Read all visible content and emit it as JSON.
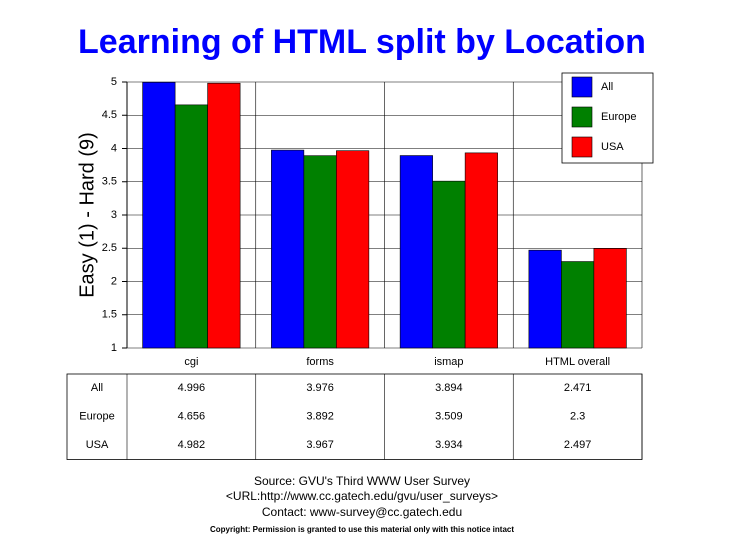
{
  "chart_data": {
    "type": "bar",
    "title": "Learning of HTML split by Location",
    "y_label": "Easy (1) - Hard (9)",
    "categories": [
      "cgi",
      "forms",
      "ismap",
      "HTML overall"
    ],
    "series": [
      {
        "name": "All",
        "color": "#0000ff",
        "values": [
          4.996,
          3.976,
          3.894,
          2.471
        ]
      },
      {
        "name": "Europe",
        "color": "#008000",
        "values": [
          4.656,
          3.892,
          3.509,
          2.3
        ]
      },
      {
        "name": "USA",
        "color": "#ff0000",
        "values": [
          4.982,
          3.967,
          3.934,
          2.497
        ]
      }
    ],
    "ylim": [
      1,
      5
    ],
    "yticks": [
      1,
      1.5,
      2,
      2.5,
      3,
      3.5,
      4,
      4.5,
      5
    ],
    "grid": true,
    "legend": "top-right",
    "notes": [
      "Source: GVU's Third WWW User Survey",
      "<URL:http://www.cc.gatech.edu/gvu/user_surveys>",
      "Contact: www-survey@cc.gatech.edu",
      "Copyright: Permission is granted to use this material only with this notice intact"
    ]
  }
}
